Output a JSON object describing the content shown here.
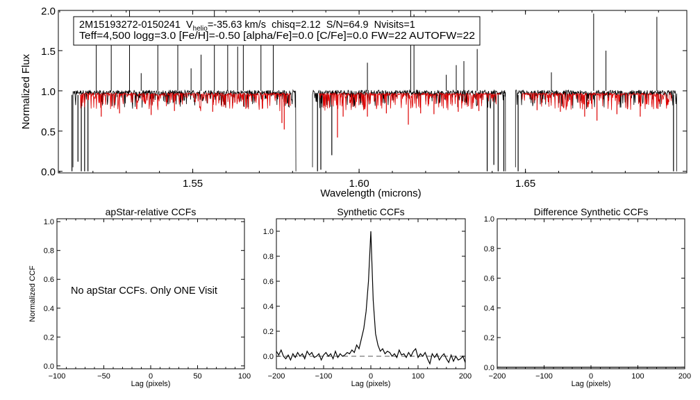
{
  "header": {
    "star_id": "2M15193272-0150241",
    "vhelio_label": "V",
    "vhelio_sub": "helio",
    "vhelio_value": "=-35.63 km/s",
    "chisq": "chisq=2.12",
    "sn": "S/N=64.9",
    "nvisits": "Nvisits=1",
    "params_line": "Teff=4,500 logg=3.0 [Fe/H]=-0.50 [alpha/Fe]=0.0 [C/Fe]=0.0 FW=22 AUTOFW=22"
  },
  "chart_data": [
    {
      "type": "line",
      "id": "spectrum",
      "title": "",
      "xlabel": "Wavelength (microns)",
      "ylabel": "Normalized Flux",
      "xlim": [
        1.5096,
        1.6985
      ],
      "ylim": [
        -0.02,
        2.0
      ],
      "xticks": [
        1.55,
        1.6,
        1.65
      ],
      "xtick_labels": [
        "1.55",
        "1.60",
        "1.65"
      ],
      "yticks": [
        0.0,
        0.5,
        1.0,
        1.5,
        2.0
      ],
      "ytick_labels": [
        "0.0",
        "0.5",
        "1.0",
        "1.5",
        "2.0"
      ],
      "series": [
        {
          "name": "observed",
          "color": "#000000",
          "segments": [
            [
              1.514,
              1.581
            ],
            [
              1.586,
              1.644
            ],
            [
              1.647,
              1.6955
            ]
          ],
          "continuum": 0.98
        },
        {
          "name": "synthetic",
          "color": "#dd0000",
          "segments": [
            [
              1.516,
              1.5795
            ],
            [
              1.588,
              1.6425
            ],
            [
              1.649,
              1.694
            ]
          ],
          "continuum": 0.96
        }
      ],
      "features": {
        "emission_spikes_observed": [
          [
            1.521,
            1.65
          ],
          [
            1.5255,
            1.95
          ],
          [
            1.531,
            2.0
          ],
          [
            1.5345,
            1.22
          ],
          [
            1.5395,
            1.85
          ],
          [
            1.5455,
            1.7
          ],
          [
            1.5495,
            1.28
          ],
          [
            1.5525,
            1.45
          ],
          [
            1.5565,
            2.0
          ],
          [
            1.5605,
            1.72
          ],
          [
            1.5635,
            1.55
          ],
          [
            1.5652,
            1.9
          ],
          [
            1.5705,
            1.85
          ],
          [
            1.5742,
            1.6
          ],
          [
            1.6025,
            1.35
          ],
          [
            1.6155,
            2.0
          ],
          [
            1.6165,
            1.95
          ],
          [
            1.6262,
            1.2
          ],
          [
            1.6292,
            1.32
          ],
          [
            1.6315,
            1.37
          ],
          [
            1.6355,
            1.52
          ],
          [
            1.6578,
            1.23
          ],
          [
            1.6705,
            1.96
          ],
          [
            1.6742,
            1.5
          ],
          [
            1.6895,
            1.92
          ]
        ],
        "deep_absorption_observed": [
          [
            1.5137,
            0.0
          ],
          [
            1.5155,
            0.12
          ],
          [
            1.5165,
            0.0
          ],
          [
            1.5175,
            0.0
          ],
          [
            1.5185,
            0.0
          ],
          [
            1.5875,
            0.0
          ],
          [
            1.5885,
            0.02
          ],
          [
            1.5918,
            0.2
          ],
          [
            1.6385,
            0.0
          ],
          [
            1.6405,
            0.08
          ],
          [
            1.6418,
            0.0
          ],
          [
            1.6435,
            0.0
          ],
          [
            1.6478,
            0.0
          ],
          [
            1.6945,
            0.0
          ]
        ],
        "absorption_synthetic": [
          [
            1.5225,
            0.68
          ],
          [
            1.528,
            0.72
          ],
          [
            1.5375,
            0.7
          ],
          [
            1.5445,
            0.75
          ],
          [
            1.556,
            0.74
          ],
          [
            1.571,
            0.78
          ],
          [
            1.5768,
            0.6
          ],
          [
            1.5775,
            0.52
          ],
          [
            1.5935,
            0.42
          ],
          [
            1.5952,
            0.68
          ],
          [
            1.6025,
            0.68
          ],
          [
            1.6082,
            0.72
          ],
          [
            1.6148,
            0.58
          ],
          [
            1.6185,
            0.72
          ],
          [
            1.6225,
            0.71
          ],
          [
            1.6298,
            0.74
          ],
          [
            1.636,
            0.75
          ],
          [
            1.6535,
            0.76
          ],
          [
            1.6605,
            0.74
          ],
          [
            1.6678,
            0.68
          ],
          [
            1.6715,
            0.63
          ],
          [
            1.6775,
            0.71
          ],
          [
            1.6845,
            0.68
          ],
          [
            1.6895,
            0.78
          ]
        ]
      }
    },
    {
      "type": "line",
      "id": "apstar_ccf",
      "title": "apStar-relative CCFs",
      "xlabel": "Lag (pixels)",
      "ylabel": "Normalized CCF",
      "xlim": [
        -100,
        100
      ],
      "ylim": [
        -0.02,
        1.02
      ],
      "xticks": [
        -100,
        -50,
        0,
        50,
        100
      ],
      "xtick_labels": [
        "-100",
        "-50",
        "0",
        "50",
        "100"
      ],
      "yticks": [
        0.0,
        0.2,
        0.4,
        0.6,
        0.8,
        1.0
      ],
      "ytick_labels": [
        "0.0",
        "0.2",
        "0.4",
        "0.6",
        "0.8",
        "1.0"
      ],
      "annotation": "No apStar CCFs.  Only ONE Visit",
      "series": []
    },
    {
      "type": "line",
      "id": "synthetic_ccf",
      "title": "Synthetic CCFs",
      "xlabel": "Lag (pixels)",
      "ylabel": "",
      "xlim": [
        -200,
        200
      ],
      "ylim": [
        -0.1,
        1.1
      ],
      "xticks": [
        -200,
        -100,
        0,
        100,
        200
      ],
      "xtick_labels": [
        "-200",
        "-100",
        "0",
        "100",
        "200"
      ],
      "yticks": [
        0.0,
        0.2,
        0.4,
        0.6,
        0.8,
        1.0
      ],
      "ytick_labels": [
        "0.0",
        "0.2",
        "0.4",
        "0.6",
        "0.8",
        "1.0"
      ],
      "series": [
        {
          "name": "ccf",
          "color": "#000000",
          "x": [
            -200,
            -195,
            -190,
            -185,
            -180,
            -175,
            -170,
            -165,
            -160,
            -155,
            -150,
            -145,
            -140,
            -135,
            -130,
            -125,
            -120,
            -115,
            -110,
            -105,
            -100,
            -95,
            -90,
            -85,
            -80,
            -75,
            -70,
            -65,
            -60,
            -55,
            -50,
            -45,
            -40,
            -35,
            -30,
            -25,
            -20,
            -15,
            -10,
            -5,
            0,
            5,
            10,
            15,
            20,
            25,
            30,
            35,
            40,
            45,
            50,
            55,
            60,
            65,
            70,
            75,
            80,
            85,
            90,
            95,
            100,
            105,
            110,
            115,
            120,
            125,
            130,
            135,
            140,
            145,
            150,
            155,
            160,
            165,
            170,
            175,
            180,
            185,
            190,
            195,
            200
          ],
          "values": [
            0.04,
            0.01,
            0.05,
            0.0,
            -0.02,
            0.01,
            -0.03,
            0.02,
            -0.01,
            0.03,
            0.0,
            0.02,
            -0.02,
            0.04,
            0.01,
            0.03,
            -0.01,
            0.0,
            0.02,
            -0.03,
            0.01,
            0.03,
            0.0,
            0.02,
            -0.02,
            0.04,
            -0.01,
            0.02,
            0.0,
            0.01,
            0.03,
            0.02,
            0.05,
            0.03,
            0.09,
            0.06,
            0.14,
            0.22,
            0.36,
            0.6,
            1.0,
            0.45,
            0.18,
            0.09,
            0.04,
            0.06,
            0.02,
            0.04,
            0.03,
            0.0,
            0.02,
            -0.01,
            0.05,
            0.01,
            0.02,
            -0.01,
            0.03,
            0.0,
            0.04,
            0.06,
            -0.01,
            0.02,
            0.0,
            0.03,
            -0.02,
            -0.06,
            0.02,
            -0.01,
            0.02,
            -0.03,
            0.0,
            0.02,
            -0.02,
            -0.05,
            0.01,
            -0.04,
            0.0,
            -0.03,
            -0.02,
            0.0,
            -0.05
          ]
        },
        {
          "name": "zero-line",
          "color": "#777777",
          "style": "dashed",
          "x": [
            -200,
            200
          ],
          "values": [
            0.0,
            0.0
          ]
        }
      ]
    },
    {
      "type": "line",
      "id": "difference_ccf",
      "title": "Difference Synthetic CCFs",
      "xlabel": "Lag (pixels)",
      "ylabel": "",
      "xlim": [
        -200,
        200
      ],
      "ylim": [
        -0.01,
        1.0
      ],
      "xticks": [
        -200,
        -100,
        0,
        100,
        200
      ],
      "xtick_labels": [
        "-200",
        "-100",
        "0",
        "100",
        "200"
      ],
      "yticks": [
        0.0,
        0.2,
        0.4,
        0.6,
        0.8,
        1.0
      ],
      "ytick_labels": [
        "0.0",
        "0.2",
        "0.4",
        "0.6",
        "0.8",
        "1.0"
      ],
      "series": [
        {
          "name": "difference",
          "color": "#000000",
          "x": [
            -200,
            200
          ],
          "values": [
            0.0,
            0.0
          ]
        }
      ]
    }
  ]
}
